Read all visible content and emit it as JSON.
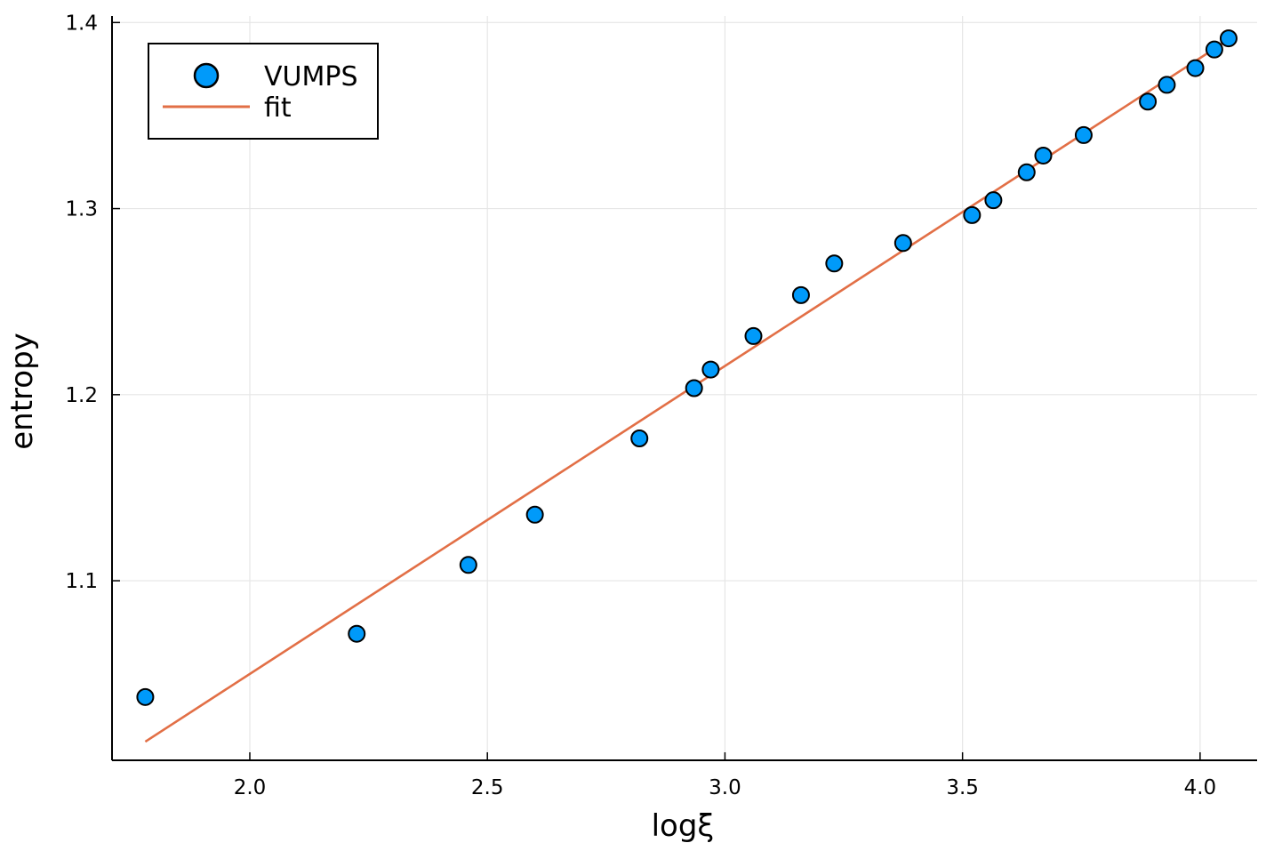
{
  "chart_data": {
    "type": "scatter",
    "xlabel": "logξ",
    "ylabel": "entropy",
    "xlim": [
      1.71,
      4.12
    ],
    "ylim": [
      1.0035,
      1.4035
    ],
    "xticks": [
      2.0,
      2.5,
      3.0,
      3.5,
      4.0
    ],
    "xtick_labels": [
      "2.0",
      "2.5",
      "3.0",
      "3.5",
      "4.0"
    ],
    "yticks": [
      1.1,
      1.2,
      1.3,
      1.4
    ],
    "ytick_labels": [
      "1.1",
      "1.2",
      "1.3",
      "1.4"
    ],
    "grid": true,
    "legend_position": "top-left",
    "series": [
      {
        "name": "VUMPS",
        "kind": "scatter",
        "color": "#009AFA",
        "x": [
          1.78,
          2.225,
          2.46,
          2.6,
          2.82,
          2.935,
          2.97,
          3.06,
          3.16,
          3.23,
          3.375,
          3.52,
          3.565,
          3.635,
          3.67,
          3.755,
          3.89,
          3.93,
          3.99,
          4.03,
          4.06
        ],
        "y": [
          1.0375,
          1.0715,
          1.1085,
          1.1355,
          1.1765,
          1.2035,
          1.2135,
          1.2315,
          1.2535,
          1.2705,
          1.2815,
          1.2965,
          1.3045,
          1.3195,
          1.3285,
          1.3395,
          1.3575,
          1.3665,
          1.3755,
          1.3855,
          1.3915
        ]
      },
      {
        "name": "fit",
        "kind": "line",
        "color": "#E26F46",
        "x": [
          1.78,
          4.07
        ],
        "y": [
          1.0135,
          1.3925
        ]
      }
    ]
  }
}
